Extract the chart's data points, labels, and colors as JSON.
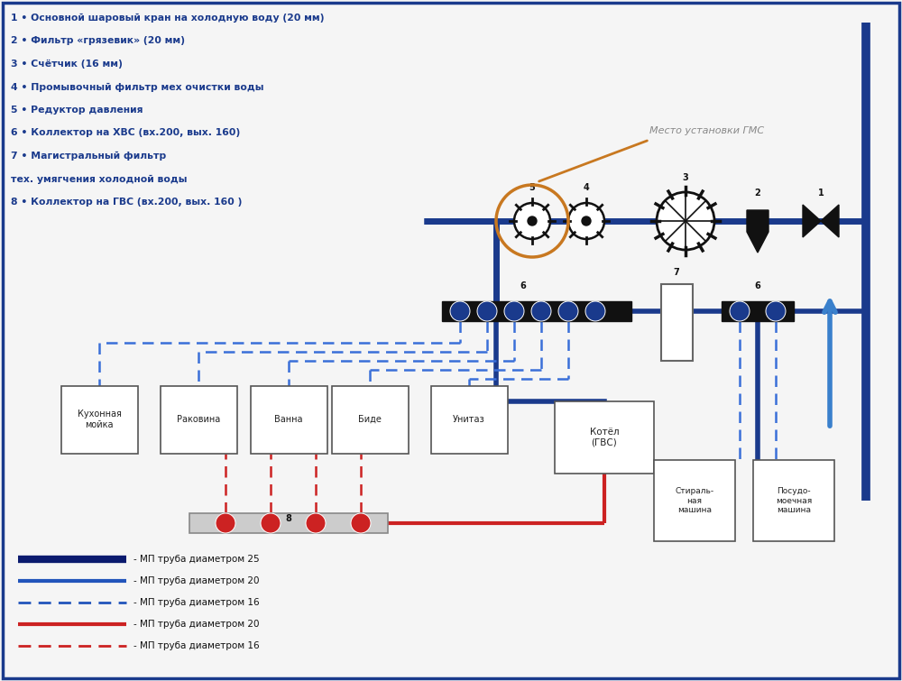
{
  "bg_color": "#f5f5f5",
  "border_color": "#1a3a8c",
  "text_color": "#1a3a8c",
  "black": "#111111",
  "cold_dark": "#1a3a8c",
  "cold_mid": "#2255bb",
  "cold_dash": "#3a6fd8",
  "hot_solid": "#cc2222",
  "hot_dash": "#cc2222",
  "annotations": [
    "1 • Основной шаровый кран на холодную воду (20 мм)",
    "2 • Фильтр «грязевик» (20 мм)",
    "3 • Счётчик (16 мм)",
    "4 • Промывочный фильтр мех очистки воды",
    "5 • Редуктор давления",
    "6 • Коллектор на ХВС (вх.200, вых. 160)",
    "7 • Магистральный фильтр",
    "тех. умягчения холодной воды",
    "8 • Коллектор на ГВС (вх.200, вых. 160 )"
  ],
  "legend_items": [
    {
      "label": "- МП труба диаметром 25",
      "color": "#0a1a6e",
      "lw": 6,
      "ls": "solid"
    },
    {
      "label": "- МП труба диаметром 20",
      "color": "#2255bb",
      "lw": 3,
      "ls": "solid"
    },
    {
      "label": "- МП труба диаметром 16",
      "color": "#2255bb",
      "lw": 2,
      "ls": "dashed"
    },
    {
      "label": "- МП труба диаметром 20",
      "color": "#cc2222",
      "lw": 3,
      "ls": "solid"
    },
    {
      "label": "- МП труба диаметром 16",
      "color": "#cc2222",
      "lw": 2,
      "ls": "dashed"
    }
  ],
  "device_labels": [
    "Кухонная\nмойка",
    "Раковина",
    "Ванна",
    "Биде",
    "Унитаз"
  ]
}
